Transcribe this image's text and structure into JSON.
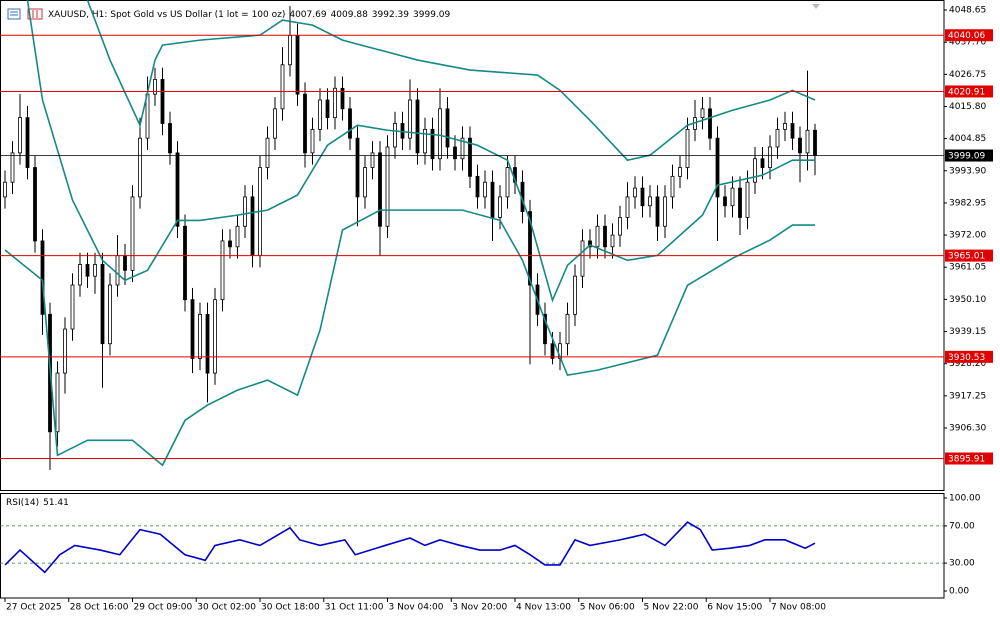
{
  "chart_data": [
    {
      "type": "candlestick",
      "title": "XAUUSD, H1:  Spot Gold vs US Dollar (1 lot = 100 oz)",
      "x": [
        0,
        1,
        2,
        3,
        4,
        5,
        6,
        7,
        8,
        9,
        10,
        11,
        12,
        13,
        14,
        15,
        16,
        17,
        18,
        19,
        20,
        21,
        22,
        23,
        24,
        25,
        26,
        27,
        28,
        29,
        30,
        31,
        32,
        33,
        34,
        35,
        36,
        37,
        38,
        39,
        40,
        41,
        42,
        43,
        44,
        45,
        46,
        47,
        48,
        49,
        50,
        51,
        52,
        53,
        54,
        55,
        56,
        57,
        58,
        59,
        60,
        61,
        62,
        63,
        64,
        65,
        66,
        67,
        68,
        69,
        70,
        71,
        72,
        73,
        74,
        75,
        76,
        77,
        78,
        79,
        80,
        81,
        82,
        83,
        84,
        85,
        86,
        87,
        88,
        89,
        90,
        91,
        92,
        93,
        94,
        95,
        96,
        97,
        98,
        99,
        100,
        101,
        102,
        103,
        104,
        105,
        106,
        107,
        108
      ],
      "open": [
        3985,
        3990,
        4000,
        4012,
        3995,
        3970,
        3945,
        3905,
        3925,
        3940,
        3955,
        3962,
        3958,
        3962,
        3935,
        3955,
        3965,
        3960,
        3985,
        4005,
        4020,
        4025,
        4010,
        4000,
        3975,
        3950,
        3930,
        3945,
        3925,
        3950,
        3970,
        3968,
        3975,
        3985,
        3965,
        3995,
        4005,
        4015,
        4030,
        4040,
        4020,
        4000,
        4008,
        4018,
        4012,
        4022,
        4015,
        4005,
        3985,
        3995,
        4000,
        3975,
        4002,
        4010,
        4005,
        4018,
        4000,
        4008,
        3998,
        4015,
        4002,
        3998,
        4005,
        3992,
        3985,
        3990,
        3978,
        3985,
        3995,
        3990,
        3980,
        3955,
        3945,
        3935,
        3930,
        3935,
        3945,
        3958,
        3970,
        3968,
        3975,
        3968,
        3972,
        3978,
        3985,
        3988,
        3982,
        3985,
        3975,
        3985,
        3992,
        3995,
        4008,
        4012,
        4015,
        4005,
        3985,
        3982,
        3988,
        3978,
        3990,
        3998,
        3995,
        4002,
        4008,
        4010,
        4005,
        4000,
        4007.69
      ],
      "high": [
        3994,
        4004,
        4020,
        4016,
        3999,
        3974,
        3949,
        3929,
        3944,
        3959,
        3966,
        3966,
        3966,
        3966,
        3959,
        3972,
        3969,
        3989,
        4012,
        4026,
        4029,
        4029,
        4014,
        4004,
        3979,
        3954,
        3949,
        3949,
        3954,
        3974,
        3974,
        3979,
        3989,
        3989,
        3999,
        4009,
        4019,
        4036,
        4050,
        4044,
        4024,
        4012,
        4022,
        4022,
        4026,
        4026,
        4019,
        4009,
        3999,
        4004,
        4004,
        4006,
        4014,
        4014,
        4025,
        4022,
        4012,
        4012,
        4022,
        4019,
        4006,
        4009,
        4009,
        3996,
        3994,
        3994,
        3989,
        3999,
        3999,
        3994,
        3984,
        3959,
        3949,
        3939,
        3939,
        3949,
        3962,
        3974,
        3974,
        3979,
        3979,
        3976,
        3982,
        3990,
        3992,
        3992,
        3989,
        3989,
        3989,
        3996,
        3999,
        4012,
        4018,
        4019,
        4019,
        4009,
        3989,
        3992,
        3992,
        3994,
        4002,
        4002,
        4006,
        4012,
        4014,
        4014,
        4009,
        4028,
        4009.88
      ],
      "low": [
        3981,
        3986,
        3996,
        3991,
        3966,
        3938,
        3892,
        3900,
        3918,
        3936,
        3951,
        3954,
        3952,
        3920,
        3931,
        3951,
        3955,
        3956,
        3981,
        4001,
        4016,
        4006,
        3996,
        3971,
        3946,
        3925,
        3926,
        3915,
        3921,
        3946,
        3964,
        3964,
        3971,
        3961,
        3961,
        3991,
        4001,
        4011,
        4026,
        4016,
        3995,
        3996,
        4004,
        4008,
        4008,
        4011,
        4001,
        3975,
        3981,
        3991,
        3965,
        3971,
        3998,
        4001,
        4001,
        3996,
        3996,
        3994,
        3994,
        3998,
        3994,
        3994,
        3988,
        3981,
        3981,
        3970,
        3974,
        3981,
        3986,
        3976,
        3928,
        3941,
        3931,
        3928,
        3926,
        3931,
        3941,
        3954,
        3964,
        3964,
        3964,
        3964,
        3968,
        3974,
        3981,
        3978,
        3978,
        3970,
        3971,
        3981,
        3988,
        3991,
        4004,
        4008,
        4001,
        3970,
        3978,
        3978,
        3972,
        3974,
        3986,
        3991,
        3991,
        3998,
        4004,
        4001,
        3990,
        3994,
        3992.39
      ],
      "close": [
        3990,
        4000,
        4012,
        3995,
        3970,
        3945,
        3905,
        3925,
        3940,
        3955,
        3962,
        3958,
        3962,
        3935,
        3955,
        3965,
        3960,
        3985,
        4005,
        4020,
        4025,
        4010,
        4000,
        3975,
        3950,
        3930,
        3945,
        3925,
        3950,
        3970,
        3968,
        3975,
        3985,
        3965,
        3995,
        4005,
        4015,
        4030,
        4040,
        4020,
        4000,
        4008,
        4018,
        4012,
        4022,
        4015,
        4005,
        3985,
        3995,
        4000,
        3975,
        4002,
        4010,
        4005,
        4018,
        4000,
        4008,
        3998,
        4015,
        4002,
        3998,
        4005,
        3992,
        3985,
        3990,
        3978,
        3985,
        3995,
        3990,
        3980,
        3955,
        3945,
        3935,
        3930,
        3935,
        3945,
        3958,
        3970,
        3968,
        3975,
        3968,
        3972,
        3978,
        3985,
        3988,
        3982,
        3985,
        3975,
        3985,
        3992,
        3995,
        4008,
        4012,
        4015,
        4005,
        3985,
        3982,
        3988,
        3978,
        3990,
        3998,
        3995,
        4002,
        4008,
        4010,
        4005,
        4000,
        4007.69,
        3999.09
      ],
      "up_color": "#ffffff",
      "down_color": "#000000",
      "outline_color": "#000000",
      "bands": [
        {
          "color": "#138a86",
          "x": [
            11,
            14,
            18,
            20,
            21,
            26,
            34,
            37,
            41,
            45,
            50,
            55,
            62,
            71,
            74,
            78,
            83,
            86,
            91,
            97,
            102,
            105,
            108
          ],
          "values": [
            4052,
            4031.6,
            4009.4,
            4031.6,
            4036.7,
            4038.4,
            4040.1,
            4045.2,
            4043.5,
            4038.4,
            4035,
            4031.6,
            4028.2,
            4026.5,
            4021.3,
            4011.1,
            3997.5,
            3999.2,
            4009.4,
            4014.5,
            4018,
            4021.3,
            4018
          ]
        },
        {
          "color": "#138a86",
          "x": [
            3,
            5,
            9,
            13,
            16,
            19,
            23,
            26,
            31,
            35,
            39,
            43,
            47,
            51,
            58,
            63,
            67,
            70,
            73,
            75,
            78,
            83,
            87,
            93,
            95,
            101,
            105,
            108
          ],
          "values": [
            4052,
            4018,
            3983.9,
            3963.4,
            3956.6,
            3960,
            3977,
            3977,
            3978.8,
            3980.5,
            3985.6,
            4002.6,
            4009.4,
            4007.7,
            4006,
            4002.6,
            3997.5,
            3977,
            3949.8,
            3961.7,
            3968.6,
            3963.4,
            3965.1,
            3978.8,
            3989,
            3992.4,
            3997.5,
            3997.5
          ]
        },
        {
          "color": "#138a86",
          "x": [
            0,
            5,
            7,
            11,
            17,
            21,
            24,
            27,
            31,
            35,
            39,
            42,
            45,
            50,
            61,
            66,
            69,
            72,
            75,
            79,
            87,
            91,
            97,
            102,
            105,
            108
          ],
          "values": [
            3966.9,
            3956.6,
            3897,
            3902.1,
            3902.1,
            3893.6,
            3908.9,
            3914.1,
            3919.2,
            3922.6,
            3917.5,
            3939.6,
            3973.7,
            3980.5,
            3980.5,
            3977,
            3963.4,
            3943,
            3924.3,
            3926,
            3931.1,
            3954.9,
            3964.1,
            3970.3,
            3975.4,
            3975.4
          ]
        }
      ],
      "hlines": [
        {
          "value": 4040.06,
          "color": "#e00000"
        },
        {
          "value": 4020.91,
          "color": "#e00000"
        },
        {
          "value": 3965.01,
          "color": "#e00000"
        },
        {
          "value": 3930.53,
          "color": "#e00000"
        },
        {
          "value": 3895.91,
          "color": "#e00000"
        }
      ],
      "last_price_color": "#000000",
      "xlim": [
        -0.6667,
        125.2
      ],
      "ylim": [
        3885.18,
        4052.06
      ],
      "yticks": [
        4048.65,
        {
          "value": 4037.7,
          "label": "4037.70"
        },
        4026.75,
        {
          "value": 4015.8,
          "label": "4015.80"
        },
        4004.85,
        {
          "value": 3993.9,
          "label": "3993.90"
        },
        3982.95,
        {
          "value": 3972,
          "label": "3972.00"
        },
        3961.05,
        {
          "value": 3950.1,
          "label": "3950.10"
        },
        3939.15,
        {
          "value": 3928.2,
          "label": "3928.20"
        },
        3917.25,
        {
          "value": 3906.3,
          "label": "3906.30"
        }
      ]
    },
    {
      "type": "line",
      "title": "RSI(14)",
      "color": "#0000cc",
      "x": [
        0,
        2,
        5.3,
        7.3,
        9.3,
        12.7,
        15.3,
        18,
        20.7,
        24,
        26.7,
        28,
        31.3,
        34,
        38,
        39.3,
        42,
        45.3,
        46.7,
        50.7,
        54,
        56,
        58,
        60.7,
        63.3,
        66,
        68,
        70,
        72,
        74,
        76,
        78,
        82,
        85.3,
        88,
        91,
        92.7,
        94.3,
        96.7,
        99.3,
        101.3,
        104,
        106.7,
        108
      ],
      "values": [
        28,
        44,
        20,
        39,
        49,
        44,
        39,
        66,
        61,
        39,
        33,
        49,
        55,
        49,
        68,
        55,
        49,
        55,
        39,
        49,
        57,
        49,
        55,
        49,
        44,
        44,
        49,
        39,
        28,
        28,
        55,
        49,
        55,
        61,
        49,
        74,
        66,
        44,
        46,
        49,
        55,
        55,
        46,
        51.41
      ],
      "levels": [
        70,
        30
      ],
      "xlim": [
        -0.6667,
        125.2
      ],
      "ylim": [
        -7.53,
        105.38
      ],
      "yticks": [
        {
          "value": 100,
          "label": "100.00"
        },
        {
          "value": 70,
          "label": "70.00"
        },
        {
          "value": 30,
          "label": "30.00"
        },
        {
          "value": 0,
          "label": "0.00"
        }
      ],
      "xticks": [
        {
          "value": 0,
          "label": "27 Oct 2025"
        },
        {
          "value": 8.5,
          "label": "28 Oct 16:00"
        },
        {
          "value": 17,
          "label": "29 Oct 09:00"
        },
        {
          "value": 25.5,
          "label": "30 Oct 02:00"
        },
        {
          "value": 34,
          "label": "30 Oct 18:00"
        },
        {
          "value": 42.5,
          "label": "31 Oct 11:00"
        },
        {
          "value": 51,
          "label": "3 Nov 04:00"
        },
        {
          "value": 59.5,
          "label": "3 Nov 20:00"
        },
        {
          "value": 68,
          "label": "4 Nov 13:00"
        },
        {
          "value": 76.5,
          "label": "5 Nov 06:00"
        },
        {
          "value": 85,
          "label": "5 Nov 22:00"
        },
        {
          "value": 93.5,
          "label": "6 Nov 15:00"
        },
        {
          "value": 102,
          "label": "7 Nov 08:00"
        }
      ]
    }
  ]
}
